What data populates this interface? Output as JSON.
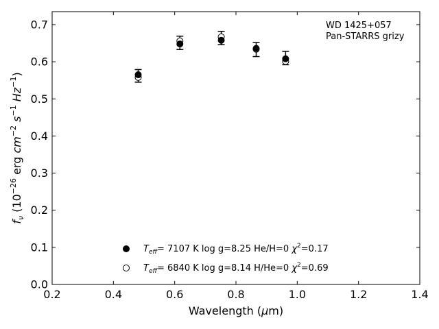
{
  "chart_data": {
    "type": "scatter",
    "xlabel": "Wavelength (μm)",
    "ylabel": "f_ν (10^-26 erg cm^-2 s^-1 Hz^-1)",
    "xlim": [
      0.2,
      1.4
    ],
    "ylim": [
      0.0,
      0.735
    ],
    "xticks": [
      "0.2",
      "0.4",
      "0.6",
      "0.8",
      "1.0",
      "1.2",
      "1.4"
    ],
    "yticks": [
      "0.0",
      "0.1",
      "0.2",
      "0.3",
      "0.4",
      "0.5",
      "0.6",
      "0.7"
    ],
    "annotation": [
      "WD 1425+057",
      "Pan-STARRS grizy"
    ],
    "observed": {
      "x": [
        0.481,
        0.617,
        0.752,
        0.866,
        0.962
      ],
      "y": [
        0.562,
        0.651,
        0.664,
        0.633,
        0.61
      ],
      "yerr": [
        0.017,
        0.018,
        0.018,
        0.019,
        0.018
      ]
    },
    "series": [
      {
        "name": "Teff= 7107 K log g=8.25 He/H=0 χ²=0.17",
        "marker": "filled-circle",
        "x": [
          0.481,
          0.617,
          0.752,
          0.866,
          0.962
        ],
        "y": [
          0.565,
          0.648,
          0.658,
          0.636,
          0.608
        ]
      },
      {
        "name": "Teff= 6840 K log g=8.14 H/He=0 χ²=0.69",
        "marker": "open-circle",
        "x": [
          0.481,
          0.617,
          0.752,
          0.866,
          0.962
        ],
        "y": [
          0.558,
          0.656,
          0.667,
          0.634,
          0.601
        ]
      }
    ],
    "legend": {
      "placement": "bottom-center",
      "entries": [
        {
          "teff": "7107 K",
          "logg": "log g=8.25",
          "comp": "He/H=0",
          "chi": "=0.17"
        },
        {
          "teff": "6840 K",
          "logg": "log g=8.14",
          "comp": "H/He=0",
          "chi": "=0.69"
        }
      ]
    },
    "grid": false
  }
}
